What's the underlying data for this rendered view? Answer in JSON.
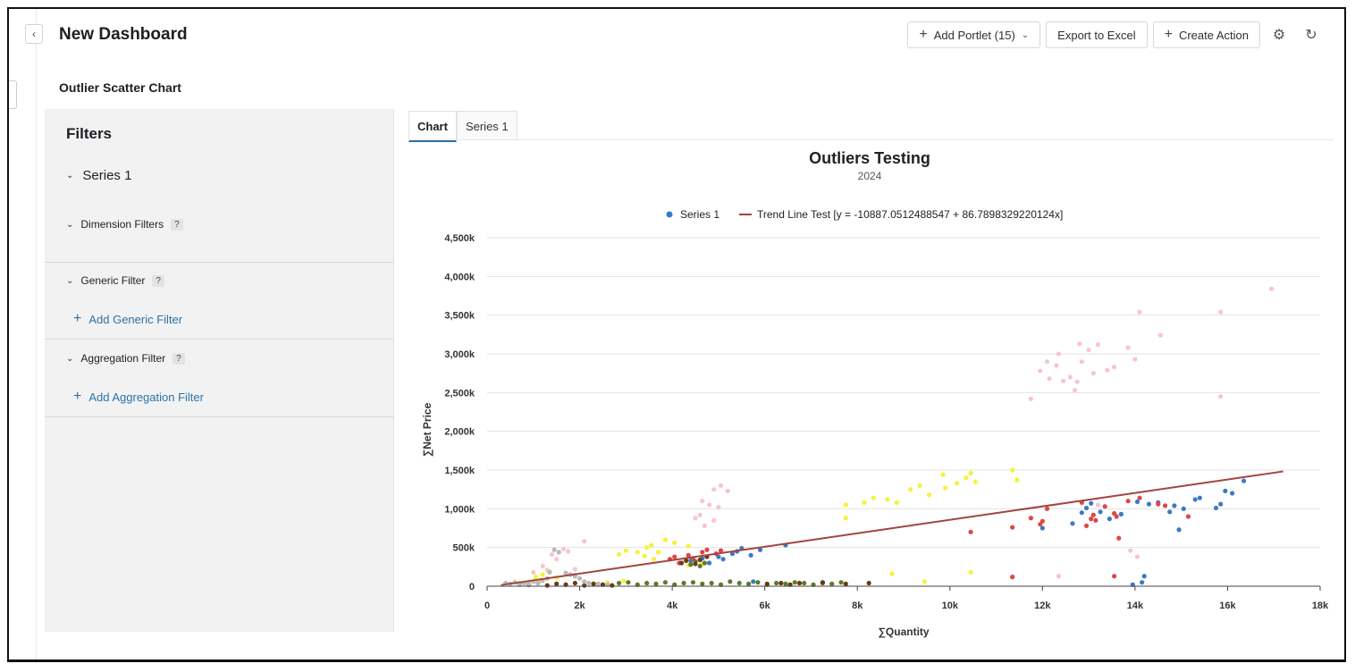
{
  "header": {
    "title": "New Dashboard",
    "add_portlet_label": "Add Portlet (15)",
    "export_label": "Export to Excel",
    "create_action_label": "Create Action"
  },
  "portlet": {
    "title": "Outlier Scatter Chart"
  },
  "filters": {
    "title": "Filters",
    "series_label": "Series 1",
    "dimension_label": "Dimension Filters",
    "generic_label": "Generic Filter",
    "add_generic_label": "Add Generic Filter",
    "aggregation_label": "Aggregation Filter",
    "add_aggregation_label": "Add Aggregation Filter",
    "help_mark": "?"
  },
  "tabs": [
    {
      "label": "Chart"
    },
    {
      "label": "Series 1"
    }
  ],
  "colors": {
    "accent": "#2a73a8",
    "trend": "#a3443f"
  },
  "chart_data": {
    "type": "scatter",
    "title": "Outliers Testing",
    "subtitle": "2024",
    "xlabel": "∑Quantity",
    "ylabel": "∑Net Price",
    "xlim": [
      0,
      18000
    ],
    "ylim": [
      0,
      4500000
    ],
    "x_ticks": [
      "0",
      "2k",
      "4k",
      "6k",
      "8k",
      "10k",
      "12k",
      "14k",
      "16k",
      "18k"
    ],
    "y_ticks": [
      "0",
      "500k",
      "1,000k",
      "1,500k",
      "2,000k",
      "2,500k",
      "3,000k",
      "3,500k",
      "4,000k",
      "4,500k"
    ],
    "legend": {
      "position": "top",
      "series_label": "Series 1",
      "trend_label": "Trend Line Test [y = -10887.0512488547 + 86.7898329220124x]"
    },
    "grid": true,
    "trend_line": {
      "intercept": -10887.0512488547,
      "slope": 86.7898329220124,
      "x_range": [
        300,
        17200
      ]
    },
    "groups": [
      {
        "color": "#f7c4d3",
        "points": [
          [
            11750,
            2420
          ],
          [
            11950,
            2780
          ],
          [
            12150,
            2680
          ],
          [
            12100,
            2900
          ],
          [
            12300,
            2850
          ],
          [
            12350,
            3000
          ],
          [
            12450,
            2650
          ],
          [
            12600,
            2700
          ],
          [
            12700,
            2530
          ],
          [
            12750,
            2640
          ],
          [
            12800,
            3130
          ],
          [
            12850,
            2900
          ],
          [
            13000,
            3050
          ],
          [
            13100,
            2750
          ],
          [
            13200,
            3120
          ],
          [
            13400,
            2790
          ],
          [
            13550,
            2830
          ],
          [
            13850,
            3080
          ],
          [
            14000,
            2930
          ],
          [
            14100,
            3540
          ],
          [
            14550,
            3240
          ],
          [
            15850,
            3540
          ],
          [
            15850,
            2450
          ],
          [
            16950,
            3840
          ],
          [
            13200,
            1050
          ],
          [
            13900,
            460
          ],
          [
            14050,
            380
          ],
          [
            12350,
            130
          ],
          [
            4650,
            1100
          ],
          [
            4800,
            1050
          ],
          [
            4900,
            1250
          ],
          [
            5050,
            1300
          ],
          [
            5200,
            1230
          ],
          [
            4600,
            920
          ],
          [
            4500,
            880
          ],
          [
            4700,
            780
          ],
          [
            4900,
            850
          ],
          [
            5000,
            1020
          ],
          [
            1650,
            480
          ],
          [
            1750,
            450
          ],
          [
            2100,
            580
          ],
          [
            1400,
            410
          ],
          [
            1500,
            350
          ],
          [
            1200,
            260
          ],
          [
            1000,
            180
          ],
          [
            1300,
            210
          ],
          [
            1900,
            220
          ]
        ]
      },
      {
        "color": "#f5f23a",
        "points": [
          [
            7750,
            1050
          ],
          [
            7750,
            880
          ],
          [
            8150,
            1080
          ],
          [
            8350,
            1140
          ],
          [
            8650,
            1120
          ],
          [
            8850,
            1080
          ],
          [
            9150,
            1250
          ],
          [
            9350,
            1300
          ],
          [
            9550,
            1180
          ],
          [
            9850,
            1440
          ],
          [
            9900,
            1270
          ],
          [
            10150,
            1330
          ],
          [
            10350,
            1400
          ],
          [
            10450,
            1460
          ],
          [
            10550,
            1350
          ],
          [
            11350,
            1500
          ],
          [
            11450,
            1370
          ],
          [
            10450,
            180
          ],
          [
            9450,
            60
          ],
          [
            8750,
            160
          ],
          [
            2850,
            410
          ],
          [
            3000,
            460
          ],
          [
            3250,
            440
          ],
          [
            3450,
            500
          ],
          [
            3550,
            530
          ],
          [
            3700,
            440
          ],
          [
            3850,
            600
          ],
          [
            3400,
            390
          ],
          [
            3600,
            350
          ],
          [
            4050,
            560
          ],
          [
            4350,
            520
          ],
          [
            4350,
            270
          ],
          [
            4650,
            290
          ],
          [
            2600,
            50
          ],
          [
            2950,
            70
          ],
          [
            1050,
            120
          ],
          [
            1150,
            80
          ],
          [
            900,
            60
          ],
          [
            1200,
            150
          ],
          [
            1350,
            190
          ],
          [
            1500,
            110
          ],
          [
            700,
            40
          ]
        ]
      },
      {
        "color": "#3a7ac7",
        "points": [
          [
            12650,
            810
          ],
          [
            12850,
            950
          ],
          [
            12950,
            1010
          ],
          [
            13050,
            1070
          ],
          [
            13250,
            960
          ],
          [
            13450,
            870
          ],
          [
            13700,
            930
          ],
          [
            14050,
            1090
          ],
          [
            14300,
            1060
          ],
          [
            14500,
            1080
          ],
          [
            14750,
            960
          ],
          [
            14850,
            1040
          ],
          [
            14950,
            730
          ],
          [
            15050,
            1000
          ],
          [
            15300,
            1120
          ],
          [
            15400,
            1140
          ],
          [
            15750,
            1010
          ],
          [
            15850,
            1060
          ],
          [
            15950,
            1230
          ],
          [
            16100,
            1200
          ],
          [
            16350,
            1360
          ],
          [
            12000,
            750
          ],
          [
            13950,
            20
          ],
          [
            14150,
            50
          ],
          [
            14200,
            130
          ],
          [
            4400,
            330
          ],
          [
            4650,
            360
          ],
          [
            4800,
            300
          ],
          [
            5000,
            380
          ],
          [
            5100,
            350
          ],
          [
            5300,
            420
          ],
          [
            5500,
            490
          ],
          [
            5700,
            400
          ],
          [
            5400,
            450
          ],
          [
            5900,
            470
          ],
          [
            6450,
            530
          ],
          [
            1900,
            140
          ],
          [
            5750,
            60
          ]
        ]
      },
      {
        "color": "#e04646",
        "points": [
          [
            10450,
            700
          ],
          [
            11350,
            760
          ],
          [
            11750,
            880
          ],
          [
            11950,
            800
          ],
          [
            12000,
            840
          ],
          [
            12100,
            1000
          ],
          [
            12850,
            1080
          ],
          [
            12950,
            780
          ],
          [
            13050,
            870
          ],
          [
            13100,
            920
          ],
          [
            13150,
            850
          ],
          [
            13350,
            1030
          ],
          [
            13550,
            940
          ],
          [
            13600,
            900
          ],
          [
            13650,
            620
          ],
          [
            13850,
            1100
          ],
          [
            14100,
            1140
          ],
          [
            14500,
            1060
          ],
          [
            14650,
            1040
          ],
          [
            15150,
            900
          ],
          [
            11350,
            120
          ],
          [
            13550,
            130
          ],
          [
            3950,
            350
          ],
          [
            4050,
            380
          ],
          [
            4150,
            300
          ],
          [
            4350,
            400
          ],
          [
            4450,
            360
          ],
          [
            4650,
            440
          ],
          [
            4750,
            470
          ],
          [
            4950,
            420
          ],
          [
            5050,
            460
          ]
        ]
      },
      {
        "color": "#5f7a2a",
        "points": [
          [
            2850,
            40
          ],
          [
            3050,
            50
          ],
          [
            3250,
            20
          ],
          [
            3450,
            40
          ],
          [
            3650,
            30
          ],
          [
            3850,
            50
          ],
          [
            4050,
            20
          ],
          [
            4250,
            40
          ],
          [
            4450,
            50
          ],
          [
            4650,
            30
          ],
          [
            4850,
            40
          ],
          [
            5050,
            20
          ],
          [
            5250,
            60
          ],
          [
            5450,
            40
          ],
          [
            5650,
            30
          ],
          [
            5850,
            50
          ],
          [
            6050,
            20
          ],
          [
            6250,
            40
          ],
          [
            6450,
            30
          ],
          [
            6650,
            50
          ],
          [
            6850,
            40
          ],
          [
            7050,
            20
          ],
          [
            7250,
            40
          ],
          [
            7450,
            30
          ],
          [
            7650,
            50
          ],
          [
            4400,
            280
          ],
          [
            4500,
            320
          ],
          [
            4600,
            260
          ],
          [
            4700,
            300
          ]
        ]
      },
      {
        "color": "#6b3a12",
        "points": [
          [
            700,
            30
          ],
          [
            900,
            20
          ],
          [
            1100,
            40
          ],
          [
            1300,
            10
          ],
          [
            1500,
            30
          ],
          [
            1700,
            20
          ],
          [
            1900,
            40
          ],
          [
            2100,
            10
          ],
          [
            2300,
            30
          ],
          [
            2500,
            20
          ],
          [
            2700,
            10
          ],
          [
            4200,
            300
          ],
          [
            4300,
            330
          ],
          [
            4500,
            290
          ],
          [
            4600,
            340
          ],
          [
            4750,
            380
          ],
          [
            6050,
            30
          ],
          [
            6350,
            40
          ],
          [
            6550,
            20
          ],
          [
            6750,
            40
          ],
          [
            7250,
            50
          ],
          [
            7750,
            30
          ],
          [
            8250,
            40
          ]
        ]
      },
      {
        "color": "#b9b9b9",
        "points": [
          [
            400,
            40
          ],
          [
            500,
            30
          ],
          [
            600,
            50
          ],
          [
            700,
            20
          ],
          [
            800,
            40
          ],
          [
            900,
            30
          ],
          [
            1000,
            60
          ],
          [
            1100,
            40
          ],
          [
            1200,
            70
          ],
          [
            1300,
            100
          ],
          [
            1350,
            180
          ],
          [
            1450,
            470
          ],
          [
            1550,
            440
          ],
          [
            1700,
            170
          ],
          [
            1800,
            150
          ],
          [
            1900,
            130
          ],
          [
            2000,
            100
          ],
          [
            2100,
            60
          ],
          [
            2200,
            40
          ],
          [
            2400,
            30
          ],
          [
            2600,
            20
          ]
        ]
      }
    ]
  }
}
